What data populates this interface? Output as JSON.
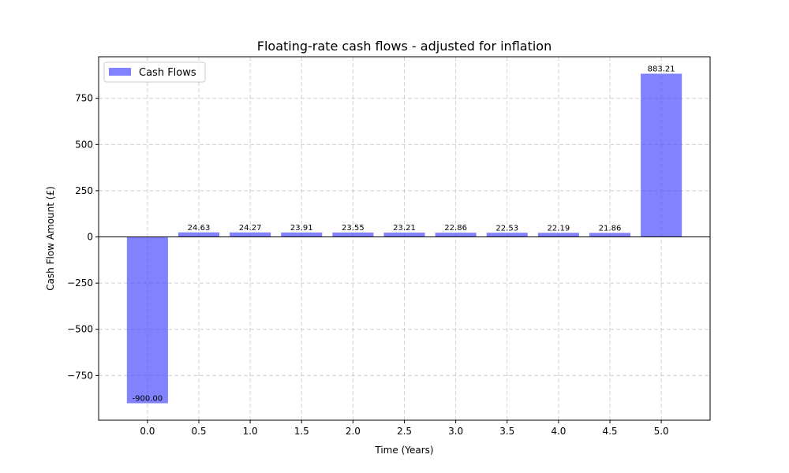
{
  "chart_data": {
    "type": "bar",
    "title": "Floating-rate cash flows - adjusted for inflation",
    "xlabel": "Time (Years)",
    "ylabel": "Cash Flow Amount (£)",
    "x": [
      0.0,
      0.5,
      1.0,
      1.5,
      2.0,
      2.5,
      3.0,
      3.5,
      4.0,
      4.5,
      5.0
    ],
    "values": [
      -900.0,
      24.63,
      24.27,
      23.91,
      23.55,
      23.21,
      22.86,
      22.53,
      22.19,
      21.86,
      883.21
    ],
    "data_labels": [
      "-900.00",
      "24.63",
      "24.27",
      "23.91",
      "23.55",
      "23.21",
      "22.86",
      "22.53",
      "22.19",
      "21.86",
      "883.21"
    ],
    "series": [
      {
        "name": "Cash Flows",
        "color": "#4d4dff"
      }
    ],
    "xlim": [
      -0.475,
      5.475
    ],
    "ylim": [
      -991.66,
      974.87
    ],
    "xticks": [
      0.0,
      0.5,
      1.0,
      1.5,
      2.0,
      2.5,
      3.0,
      3.5,
      4.0,
      4.5,
      5.0
    ],
    "xtick_labels": [
      "0.0",
      "0.5",
      "1.0",
      "1.5",
      "2.0",
      "2.5",
      "3.0",
      "3.5",
      "4.0",
      "4.5",
      "5.0"
    ],
    "yticks": [
      -750,
      -500,
      -250,
      0,
      250,
      500,
      750
    ],
    "ytick_labels": [
      "−750",
      "−500",
      "−250",
      "0",
      "250",
      "500",
      "750"
    ],
    "grid": true,
    "zero_line": true,
    "legend_position": "top-left"
  }
}
